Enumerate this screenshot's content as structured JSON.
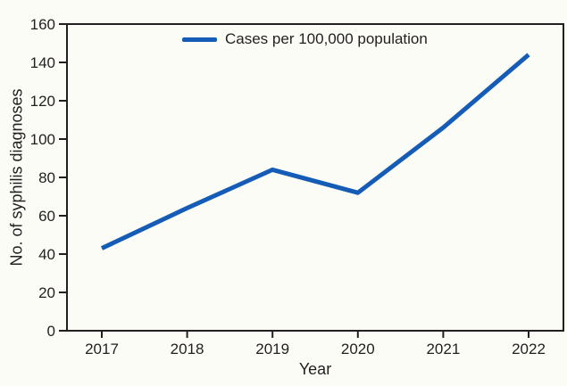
{
  "figure": {
    "background": "#FCFCF7",
    "text_color": "#231F20",
    "axis_color": "#231F20"
  },
  "legend": {
    "label": "Cases per 100,000 population",
    "swatch_color": "#155CB7"
  },
  "axes": {
    "x_label": "Year",
    "y_label": "No. of syphilis diagnoses"
  },
  "chart_data": {
    "type": "line",
    "title": "",
    "categories": [
      "2017",
      "2018",
      "2019",
      "2020",
      "2021",
      "2022"
    ],
    "series": [
      {
        "name": "Cases per 100,000 population",
        "color": "#155CB7",
        "values": [
          43,
          64,
          84,
          72,
          106,
          144
        ]
      }
    ],
    "xlabel": "Year",
    "ylabel": "No. of syphilis diagnoses",
    "ylim": [
      0,
      160
    ],
    "yticks": [
      0,
      20,
      40,
      60,
      80,
      100,
      120,
      140,
      160
    ],
    "grid": false,
    "legend_position": "top-center",
    "frame": "box",
    "line_width": 5
  }
}
